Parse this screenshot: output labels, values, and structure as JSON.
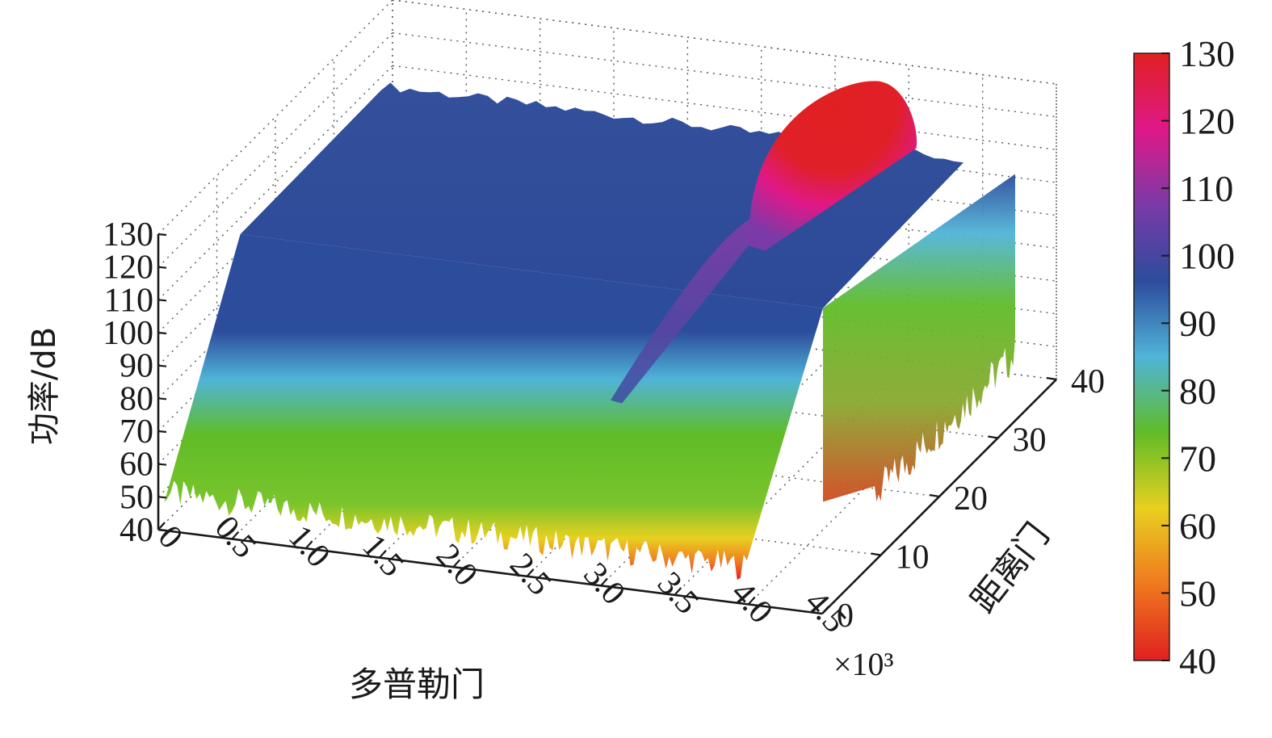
{
  "chart_data": {
    "type": "surface3d",
    "x_axis": {
      "label": "多普勒门",
      "ticks": [
        "0",
        "0.5",
        "1.0",
        "1.5",
        "2.0",
        "2.5",
        "3.0",
        "3.5",
        "4.0",
        "4.5"
      ],
      "multiplier": "×10³",
      "range": [
        0,
        4500
      ]
    },
    "y_axis": {
      "label": "距离门",
      "ticks": [
        "0",
        "10",
        "20",
        "30",
        "40"
      ],
      "range": [
        0,
        40
      ]
    },
    "z_axis": {
      "label": "功率/dB",
      "ticks": [
        "40",
        "50",
        "60",
        "70",
        "80",
        "90",
        "100",
        "110",
        "120",
        "130"
      ],
      "range": [
        40,
        130
      ]
    },
    "colorbar": {
      "ticks": [
        "40",
        "50",
        "60",
        "70",
        "80",
        "90",
        "100",
        "110",
        "120",
        "130"
      ],
      "range": [
        40,
        130
      ],
      "colors": [
        "#e02020",
        "#f07820",
        "#e8d020",
        "#60bc28",
        "#50b4d8",
        "#2c4c9c",
        "#7a3aa8",
        "#e01888",
        "#e02020"
      ]
    },
    "features": {
      "clutter_floor_db": 105,
      "near_range_noise_db": [
        45,
        70
      ],
      "main_peak": {
        "doppler_gate": 3350,
        "range_gate_start": 22,
        "range_gate_end": 40,
        "peak_db": 130
      },
      "secondary_ridge": {
        "doppler_gate": 2900,
        "peak_db": 110
      }
    },
    "grid": true
  }
}
